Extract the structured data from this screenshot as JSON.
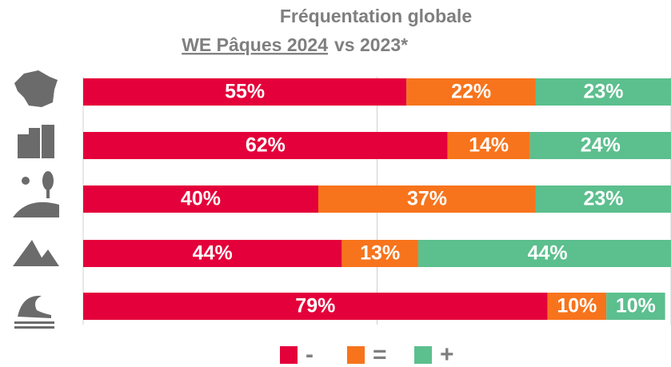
{
  "chart_data": {
    "type": "stacked-barh",
    "title": "Fréquentation globale",
    "subtitle": [
      "WE Pâques 2024",
      "vs 2023*"
    ],
    "categories": [
      null,
      null,
      null,
      null,
      null
    ],
    "series": [
      {
        "name": "-",
        "color": "#e4003a",
        "values": [
          55,
          62,
          40,
          44,
          79
        ],
        "value_labels": [
          "55%",
          "62%",
          "40%",
          "44%",
          "79%"
        ]
      },
      {
        "name": "=",
        "color": "#f7741c",
        "values": [
          22,
          14,
          37,
          13,
          10
        ],
        "value_labels": [
          "22%",
          "14%",
          "37%",
          "13%",
          "10%"
        ]
      },
      {
        "name": "+",
        "color": "#5cbf8e",
        "values": [
          23,
          24,
          23,
          44,
          10
        ],
        "value_labels": [
          "23%",
          "24%",
          "23%",
          "44%",
          "10%"
        ]
      }
    ],
    "xlim": [
      0,
      100
    ],
    "xticks": [
      0,
      50,
      100
    ],
    "grid": true,
    "legend": "bottom"
  }
}
